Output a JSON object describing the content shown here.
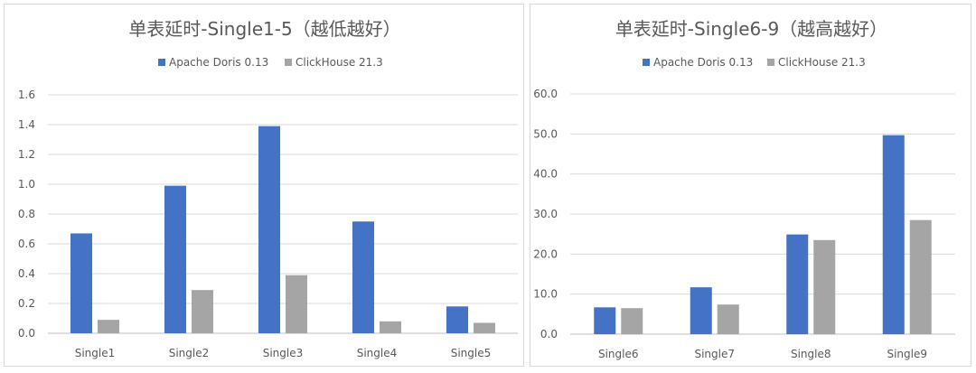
{
  "colors": {
    "doris": "#4472C4",
    "clickhouse": "#A5A5A5"
  },
  "chart_data": [
    {
      "type": "bar",
      "title": "单表延时-Single1-5（越低越好）",
      "categories": [
        "Single1",
        "Single2",
        "Single3",
        "Single4",
        "Single5"
      ],
      "series": [
        {
          "name": "Apache Doris 0.13",
          "values": [
            0.67,
            0.99,
            1.39,
            0.75,
            0.18
          ]
        },
        {
          "name": "ClickHouse 21.3",
          "values": [
            0.09,
            0.29,
            0.39,
            0.08,
            0.07
          ]
        }
      ],
      "ylim": [
        0,
        1.6
      ],
      "yticks": [
        "0.0",
        "0.2",
        "0.4",
        "0.6",
        "0.8",
        "1.0",
        "1.2",
        "1.4",
        "1.6"
      ],
      "grid": true,
      "legend": "top-center"
    },
    {
      "type": "bar",
      "title": "单表延时-Single6-9（越高越好）",
      "categories": [
        "Single6",
        "Single7",
        "Single8",
        "Single9"
      ],
      "series": [
        {
          "name": "Apache Doris 0.13",
          "values": [
            6.7,
            11.7,
            24.9,
            49.7
          ]
        },
        {
          "name": "ClickHouse 21.3",
          "values": [
            6.5,
            7.4,
            23.5,
            28.5
          ]
        }
      ],
      "ylim": [
        0,
        60
      ],
      "yticks": [
        "0.0",
        "10.0",
        "20.0",
        "30.0",
        "40.0",
        "50.0",
        "60.0"
      ],
      "grid": true,
      "legend": "top-center"
    }
  ]
}
